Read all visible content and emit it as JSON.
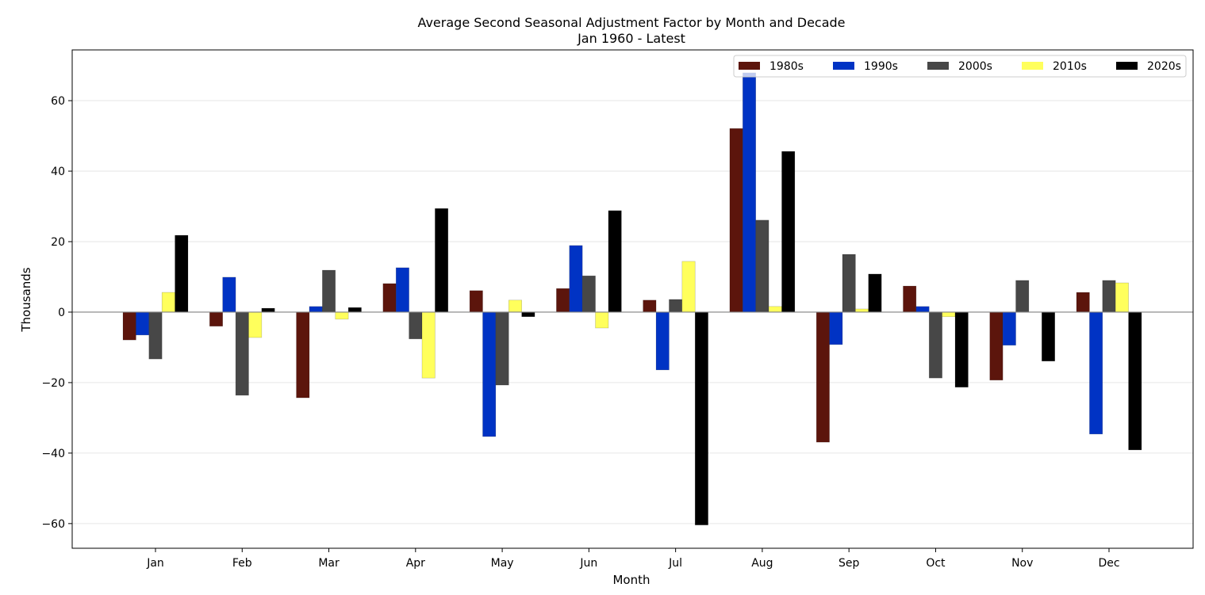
{
  "chart_data": {
    "type": "bar",
    "title": "Average Second Seasonal Adjustment Factor by Month and Decade",
    "subtitle": "Jan 1960 - Latest",
    "xlabel": "Month",
    "ylabel": "Thousands",
    "ylim": [
      -67.0,
      74.4
    ],
    "yticks": [
      -60,
      -40,
      -20,
      0,
      20,
      40,
      60
    ],
    "ytick_labels": [
      "−60",
      "−40",
      "−20",
      "0",
      "20",
      "40",
      "60"
    ],
    "grid": "horizontal",
    "legend_position": "top-right",
    "categories": [
      "Jan",
      "Feb",
      "Mar",
      "Apr",
      "May",
      "Jun",
      "Jul",
      "Aug",
      "Sep",
      "Oct",
      "Nov",
      "Dec"
    ],
    "series": [
      {
        "name": "1980s",
        "color": "#5c150c",
        "values": [
          -7.9,
          -4.0,
          -24.3,
          8.1,
          6.1,
          6.7,
          3.4,
          52.1,
          -36.9,
          7.4,
          -19.3,
          5.6
        ]
      },
      {
        "name": "1990s",
        "color": "#0033c4",
        "values": [
          -6.5,
          9.9,
          1.6,
          12.6,
          -35.3,
          18.9,
          -16.4,
          67.9,
          -9.2,
          1.6,
          -9.4,
          -34.6
        ]
      },
      {
        "name": "2000s",
        "color": "#474747",
        "values": [
          -13.3,
          -23.6,
          11.9,
          -7.6,
          -20.7,
          10.3,
          3.6,
          26.1,
          16.4,
          -18.7,
          9.0,
          9.0
        ]
      },
      {
        "name": "2010s",
        "color": "#ffff5c",
        "values": [
          5.6,
          -7.2,
          -2.0,
          -18.7,
          3.4,
          -4.5,
          14.4,
          1.6,
          0.9,
          -1.3,
          0.0,
          8.3
        ]
      },
      {
        "name": "2020s",
        "color": "#000000",
        "values": [
          21.8,
          1.1,
          1.3,
          29.4,
          -1.3,
          28.8,
          -60.4,
          45.6,
          10.8,
          -21.3,
          -13.9,
          -39.1
        ]
      }
    ]
  }
}
